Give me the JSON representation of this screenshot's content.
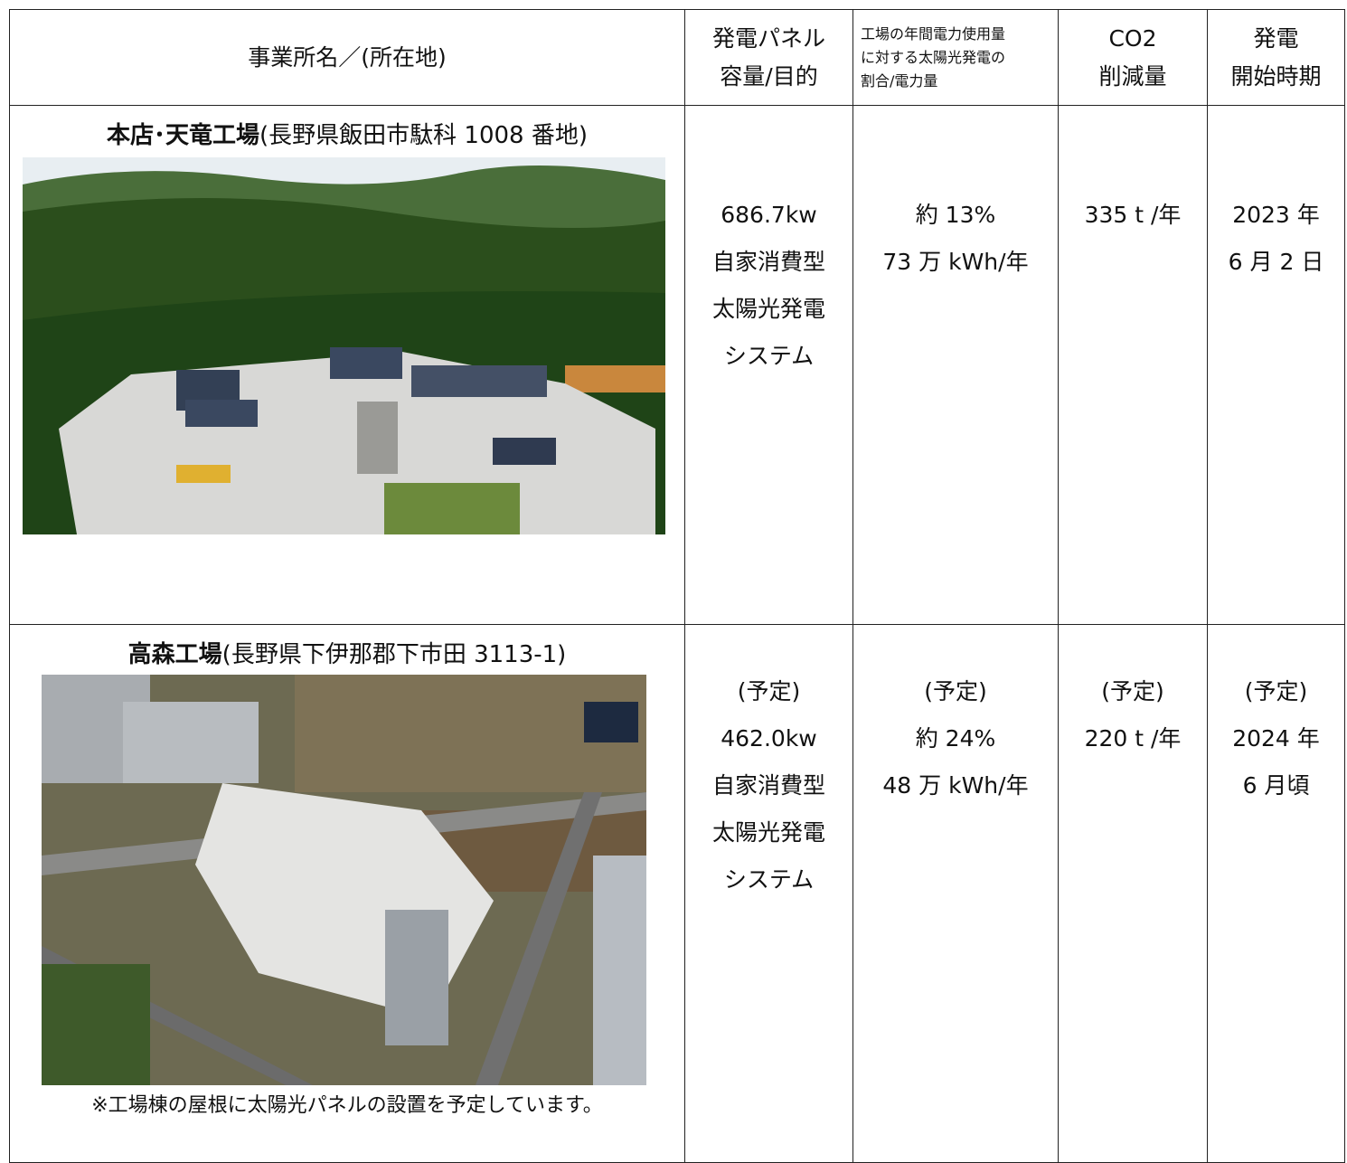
{
  "table": {
    "header": [
      [
        "事業所名／(所在地)"
      ],
      [
        "発電パネル",
        "容量/目的"
      ],
      [
        "工場の年間電力使用量",
        "に対する太陽光発電の",
        "割合/電力量"
      ],
      [
        "CO2",
        "削減量"
      ],
      [
        "発電",
        "開始時期"
      ]
    ],
    "rows": [
      {
        "name": "本店･天竜工場",
        "address": "(長野県飯田市駄科 1008 番地)",
        "capacity": [
          "686.7kw",
          "自家消費型",
          "太陽光発電",
          "システム"
        ],
        "ratio": [
          "約 13%",
          "73 万 kWh/年"
        ],
        "co2": [
          "335 t /年"
        ],
        "start": [
          "2023 年",
          "6 月 2 日"
        ]
      },
      {
        "name": "高森工場",
        "address": "(長野県下伊那郡下市田 3113-1)",
        "capacity": [
          "(予定)",
          "462.0kw",
          "自家消費型",
          "太陽光発電",
          "システム"
        ],
        "ratio": [
          "(予定)",
          "約 24%",
          "48 万 kWh/年"
        ],
        "co2": [
          "(予定)",
          "220 t /年"
        ],
        "start": [
          "(予定)",
          "2024 年",
          "6 月頃"
        ],
        "note": "※工場棟の屋根に太陽光パネルの設置を予定しています。"
      }
    ]
  }
}
